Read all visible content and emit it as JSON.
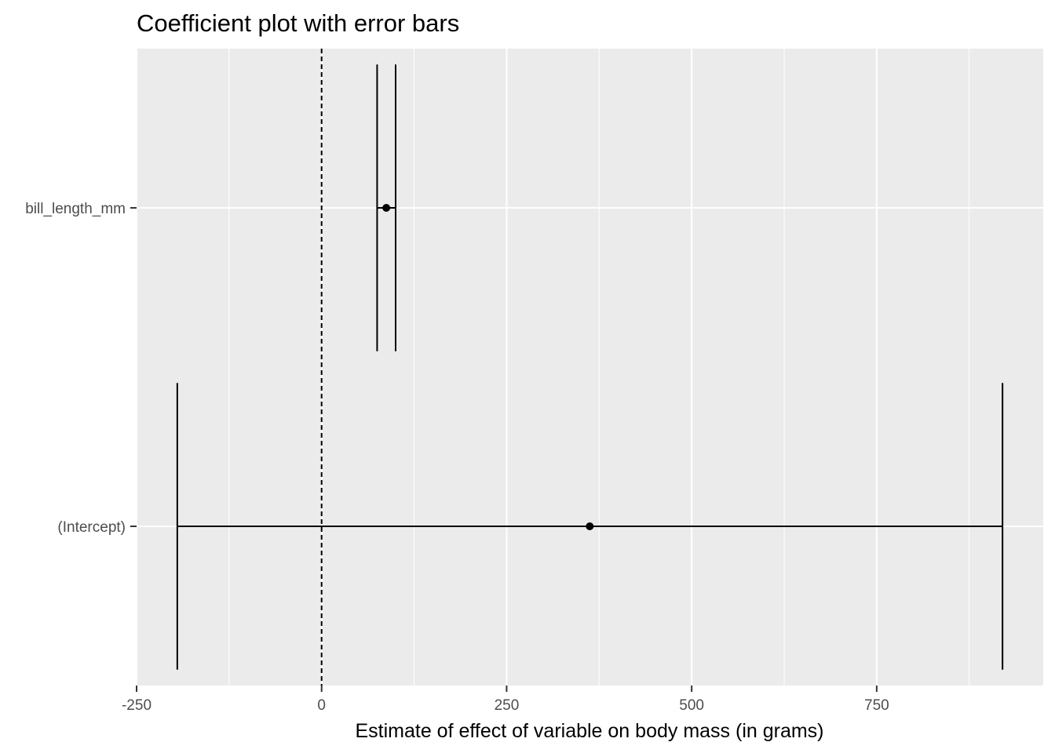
{
  "chart_data": {
    "type": "coefficient-errorbar",
    "title": "Coefficient plot with error bars",
    "xlabel": "Estimate of effect of variable on body mass (in grams)",
    "ylabel": "",
    "xlim": [
      -250,
      975
    ],
    "x_ticks": [
      -250,
      0,
      250,
      500,
      750
    ],
    "x_tick_labels": [
      "-250",
      "0",
      "250",
      "500",
      "750"
    ],
    "reference_line": 0,
    "categories": [
      "bill_length_mm",
      "(Intercept)"
    ],
    "estimates": [
      87.4,
      362.3
    ],
    "ci_low": [
      75.0,
      -195.0
    ],
    "ci_high": [
      100.0,
      920.0
    ],
    "colors": {
      "panel": "#ebebeb",
      "grid": "#ffffff",
      "marks": "#000000",
      "tick_text": "#4d4d4d"
    },
    "grid": true,
    "legend": "none"
  }
}
